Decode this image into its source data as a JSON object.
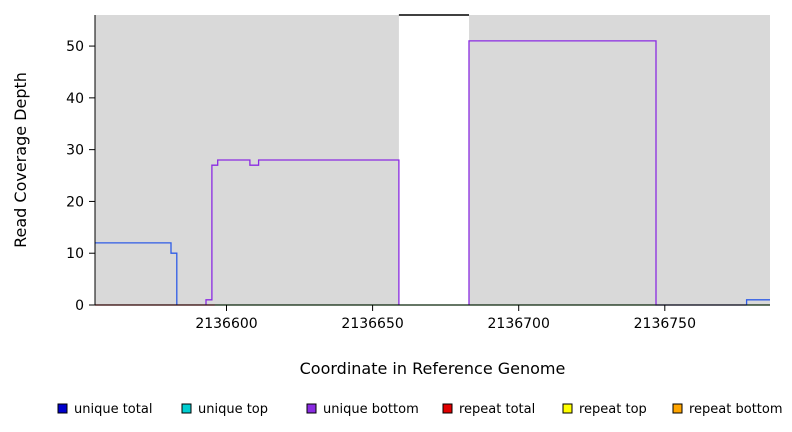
{
  "chart_data": {
    "type": "line",
    "title": "",
    "xlabel": "Coordinate in Reference Genome",
    "ylabel": "Read Coverage Depth",
    "xlim": [
      2136555,
      2136786
    ],
    "ylim": [
      0,
      56
    ],
    "xticks": [
      2136600,
      2136650,
      2136700,
      2136750
    ],
    "yticks": [
      0,
      10,
      20,
      30,
      40,
      50
    ],
    "grid": false,
    "plot_background": "#ffffff",
    "shaded_regions": [
      {
        "x0": 2136555,
        "x1": 2136659,
        "color": "#d9d9d9"
      },
      {
        "x0": 2136683,
        "x1": 2136786,
        "color": "#d9d9d9"
      }
    ],
    "gap_region": {
      "x0": 2136659,
      "x1": 2136683,
      "fill": "#ffffff",
      "top_border": "#000000"
    },
    "series": [
      {
        "name": "repeat total",
        "color": "#e00000",
        "segments": [
          [
            [
              2136555,
              0
            ],
            [
              2136596,
              0
            ]
          ]
        ]
      },
      {
        "name": "zero baseline",
        "color": "#33bb33",
        "segments": [
          [
            [
              2136596,
              0
            ],
            [
              2136786,
              0
            ]
          ]
        ]
      },
      {
        "name": "unique bottom",
        "color": "#8a2be2",
        "segments": [
          [
            [
              2136593,
              0
            ],
            [
              2136593,
              1
            ],
            [
              2136595,
              1
            ],
            [
              2136595,
              27
            ],
            [
              2136597,
              27
            ],
            [
              2136597,
              28
            ],
            [
              2136608,
              28
            ],
            [
              2136608,
              27
            ],
            [
              2136611,
              27
            ],
            [
              2136611,
              28
            ],
            [
              2136659,
              28
            ],
            [
              2136659,
              0
            ]
          ],
          [
            [
              2136683,
              0
            ],
            [
              2136683,
              51
            ],
            [
              2136747,
              51
            ],
            [
              2136747,
              0
            ],
            [
              2136778,
              0
            ]
          ]
        ]
      },
      {
        "name": "unique total",
        "color": "#2f5ce6",
        "segments": [
          [
            [
              2136555,
              12
            ],
            [
              2136581,
              12
            ],
            [
              2136581,
              10
            ],
            [
              2136583,
              10
            ],
            [
              2136583,
              0
            ]
          ],
          [
            [
              2136778,
              0
            ],
            [
              2136778,
              1
            ],
            [
              2136786,
              1
            ]
          ]
        ]
      }
    ],
    "legend": {
      "position": "bottom",
      "entries": [
        {
          "label": "unique total",
          "color": "#0000cd"
        },
        {
          "label": "unique top",
          "color": "#00ced1"
        },
        {
          "label": "unique bottom",
          "color": "#8a2be2"
        },
        {
          "label": "repeat total",
          "color": "#e00000"
        },
        {
          "label": "repeat top",
          "color": "#ffff00"
        },
        {
          "label": "repeat bottom",
          "color": "#ffa500"
        }
      ]
    }
  }
}
